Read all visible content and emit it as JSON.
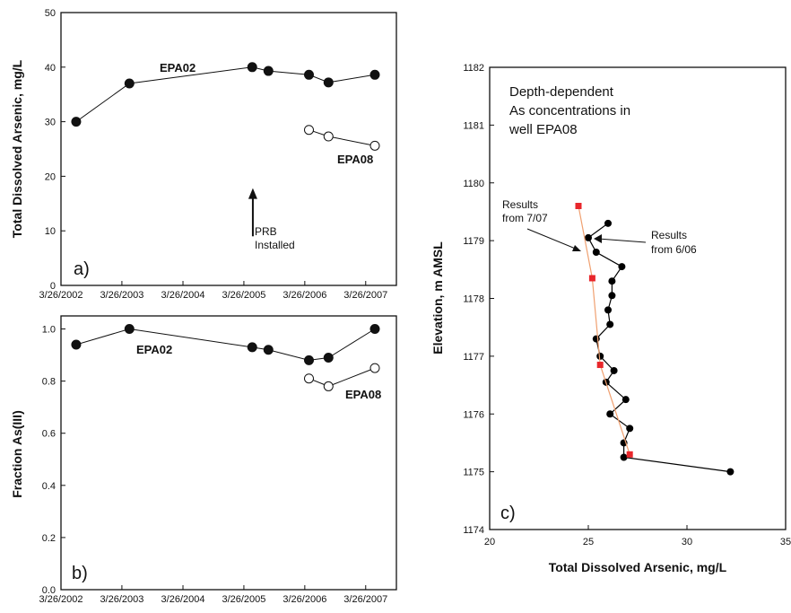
{
  "chart_data": [
    {
      "type": "scatter",
      "panel_label": "a)",
      "ylabel": "Total Dissolved Arsenic, mg/L",
      "ylim": [
        0,
        50
      ],
      "yticks": [
        "0",
        "10",
        "20",
        "30",
        "40",
        "50"
      ],
      "xlim": [
        "2002-03-26",
        "2007-09-26"
      ],
      "xticks": [
        {
          "date": "2002-03-26",
          "label": "3/26/2002"
        },
        {
          "date": "2003-03-26",
          "label": "3/26/2003"
        },
        {
          "date": "2004-03-26",
          "label": "3/26/2004"
        },
        {
          "date": "2005-03-26",
          "label": "3/26/2005"
        },
        {
          "date": "2006-03-26",
          "label": "3/26/2006"
        },
        {
          "date": "2007-03-26",
          "label": "3/26/2007"
        }
      ],
      "series": [
        {
          "name": "EPA02",
          "marker": "filled-circle",
          "points": [
            {
              "x": "2002-06-25",
              "y": 30.0
            },
            {
              "x": "2003-05-10",
              "y": 37.0
            },
            {
              "x": "2005-05-15",
              "y": 40.0
            },
            {
              "x": "2005-08-20",
              "y": 39.3
            },
            {
              "x": "2006-04-20",
              "y": 38.6
            },
            {
              "x": "2006-08-15",
              "y": 37.2
            },
            {
              "x": "2007-05-20",
              "y": 38.6
            }
          ]
        },
        {
          "name": "EPA08",
          "marker": "open-circle",
          "points": [
            {
              "x": "2006-04-20",
              "y": 28.5
            },
            {
              "x": "2006-08-15",
              "y": 27.3
            },
            {
              "x": "2007-05-20",
              "y": 25.6
            }
          ]
        }
      ],
      "annotation": {
        "line1": "PRB",
        "line2": "Installed",
        "x": "2005-03-26",
        "arrow_from": 9,
        "arrow_to": 17.5
      }
    },
    {
      "type": "scatter",
      "panel_label": "b)",
      "ylabel": "Fraction As(III)",
      "ylim": [
        0,
        1.05
      ],
      "yticks": [
        "0.0",
        "0.2",
        "0.4",
        "0.6",
        "0.8",
        "1.0"
      ],
      "ytick_values": [
        0,
        0.2,
        0.4,
        0.6,
        0.8,
        1.0
      ],
      "xlim": [
        "2002-03-26",
        "2007-09-26"
      ],
      "xticks": [
        {
          "date": "2002-03-26",
          "label": "3/26/2002"
        },
        {
          "date": "2003-03-26",
          "label": "3/26/2003"
        },
        {
          "date": "2004-03-26",
          "label": "3/26/2004"
        },
        {
          "date": "2005-03-26",
          "label": "3/26/2005"
        },
        {
          "date": "2006-03-26",
          "label": "3/26/2006"
        },
        {
          "date": "2007-03-26",
          "label": "3/26/2007"
        }
      ],
      "series": [
        {
          "name": "EPA02",
          "marker": "filled-circle",
          "points": [
            {
              "x": "2002-06-25",
              "y": 0.94
            },
            {
              "x": "2003-05-10",
              "y": 1.0
            },
            {
              "x": "2005-05-15",
              "y": 0.93
            },
            {
              "x": "2005-08-20",
              "y": 0.92
            },
            {
              "x": "2006-04-20",
              "y": 0.88
            },
            {
              "x": "2006-08-15",
              "y": 0.89
            },
            {
              "x": "2007-05-20",
              "y": 1.0
            }
          ]
        },
        {
          "name": "EPA08",
          "marker": "open-circle",
          "points": [
            {
              "x": "2006-04-20",
              "y": 0.81
            },
            {
              "x": "2006-08-15",
              "y": 0.78
            },
            {
              "x": "2007-05-20",
              "y": 0.85
            }
          ]
        }
      ]
    },
    {
      "type": "scatter",
      "panel_label": "c)",
      "xlabel": "Total Dissolved Arsenic, mg/L",
      "ylabel": "Elevation, m AMSL",
      "xlim": [
        20,
        35
      ],
      "ylim": [
        1174,
        1182
      ],
      "xticks": [
        "20",
        "25",
        "30",
        "35"
      ],
      "yticks": [
        "1174",
        "1175",
        "1176",
        "1177",
        "1178",
        "1179",
        "1180",
        "1181",
        "1182"
      ],
      "inset_text": [
        "Depth-dependent",
        "As concentrations in",
        "well EPA08"
      ],
      "labels": {
        "june": [
          "Results",
          "from 6/06"
        ],
        "july": [
          "Results",
          "from 7/07"
        ]
      },
      "series": [
        {
          "name": "Results from 6/06",
          "marker": "filled-circle",
          "color": "#000000",
          "points": [
            {
              "x": 26.0,
              "y": 1179.3
            },
            {
              "x": 25.0,
              "y": 1179.05
            },
            {
              "x": 25.4,
              "y": 1178.8
            },
            {
              "x": 26.7,
              "y": 1178.55
            },
            {
              "x": 26.2,
              "y": 1178.3
            },
            {
              "x": 26.2,
              "y": 1178.05
            },
            {
              "x": 26.0,
              "y": 1177.8
            },
            {
              "x": 26.1,
              "y": 1177.55
            },
            {
              "x": 25.4,
              "y": 1177.3
            },
            {
              "x": 25.6,
              "y": 1177.0
            },
            {
              "x": 26.3,
              "y": 1176.75
            },
            {
              "x": 25.9,
              "y": 1176.55
            },
            {
              "x": 26.9,
              "y": 1176.25
            },
            {
              "x": 26.1,
              "y": 1176.0
            },
            {
              "x": 27.1,
              "y": 1175.75
            },
            {
              "x": 26.8,
              "y": 1175.5
            },
            {
              "x": 26.8,
              "y": 1175.25
            },
            {
              "x": 32.2,
              "y": 1175.0
            }
          ]
        },
        {
          "name": "Results from 7/07",
          "marker": "square",
          "color": "#e8262b",
          "line_color": "#f0a070",
          "points": [
            {
              "x": 24.5,
              "y": 1179.6
            },
            {
              "x": 25.2,
              "y": 1178.35
            },
            {
              "x": 25.6,
              "y": 1176.85
            },
            {
              "x": 27.1,
              "y": 1175.3
            }
          ]
        }
      ]
    }
  ],
  "labels": {
    "a_epa02": "EPA02",
    "a_epa08": "EPA08",
    "b_epa02": "EPA02",
    "b_epa08": "EPA08"
  }
}
